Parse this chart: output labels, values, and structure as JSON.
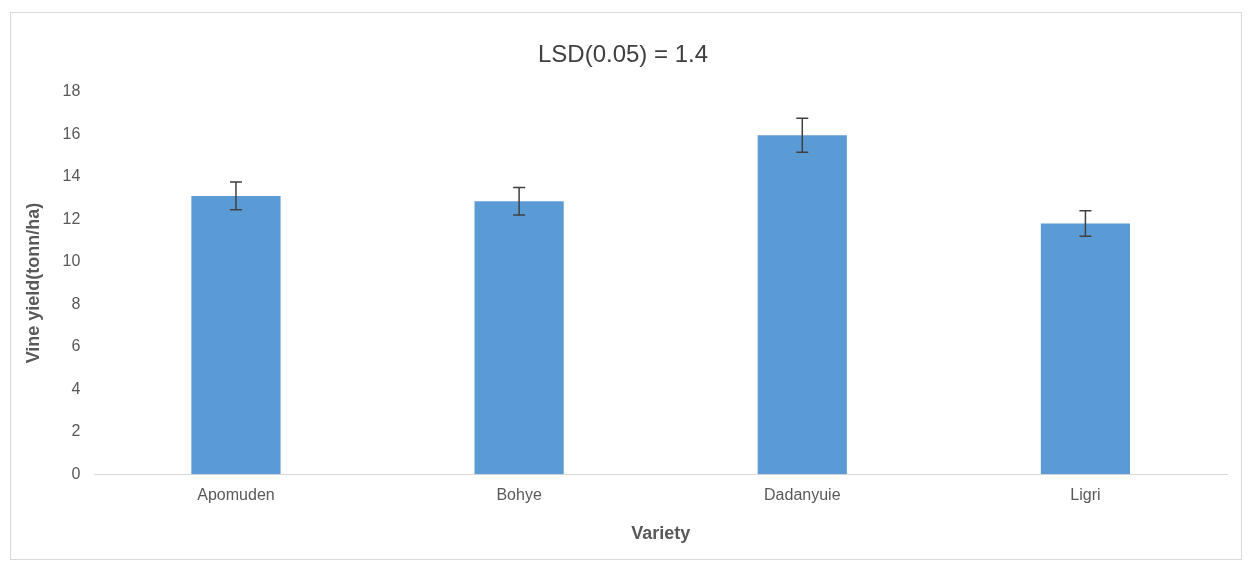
{
  "chart_data": {
    "type": "bar",
    "title": "LSD(0.05) = 1.4",
    "xlabel": "Variety",
    "ylabel": "Vine yield(tonn/ha)",
    "categories": [
      "Apomuden",
      "Bohye",
      "Dadanyuie",
      "Ligri"
    ],
    "values": [
      13.1,
      12.85,
      15.95,
      11.8
    ],
    "errors": [
      0.65,
      0.65,
      0.8,
      0.6
    ],
    "color": "#5b9bd5",
    "ylim": [
      0,
      18
    ],
    "yticks": [
      0,
      2,
      4,
      6,
      8,
      10,
      12,
      14,
      16,
      18
    ],
    "grid": false
  }
}
